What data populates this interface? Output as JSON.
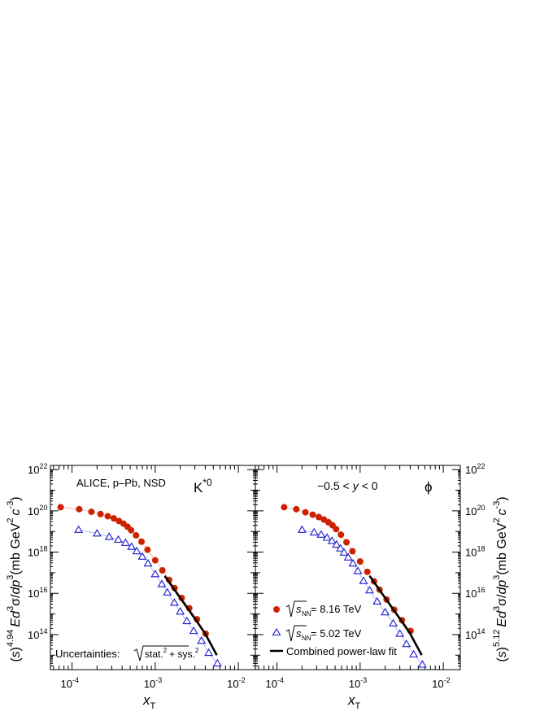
{
  "chart_data": [
    {
      "type": "scatter",
      "panel": "K*0",
      "particle_label": "K*0",
      "experiment_label": "ALICE, p–Pb, NSD",
      "uncertainty_label": "Uncertainties: √(stat.² + sys.²)",
      "xlabel": "x_T",
      "ylabel": "(√s)^4.94 Ed³σ/dp³ (mb GeV^2 c^-3)",
      "xscale": "log",
      "yscale": "log",
      "xlim": [
        5.5e-05,
        0.016
      ],
      "ylim": [
        2000000000000.0,
        1.6e+22
      ],
      "x_ticks": [
        "10^-4",
        "10^-3",
        "10^-2"
      ],
      "y_ticks": [
        "10^14",
        "10^16",
        "10^18",
        "10^20",
        "10^22"
      ],
      "series": [
        {
          "name": "√s_NN = 8.16 TeV",
          "color": "#cc2200",
          "marker": "filled-circle",
          "x": [
            7.3e-05,
            0.000122,
            0.000171,
            0.00022,
            0.000269,
            0.000318,
            0.000367,
            0.000416,
            0.000465,
            0.000514,
            0.000588,
            0.000685,
            0.000808,
            0.001,
            0.00122,
            0.00147,
            0.00171,
            0.00208,
            0.00257,
            0.00318,
            0.00404
          ],
          "y": [
            1.5e+20,
            1.2e+20,
            9e+19,
            7e+19,
            5.5e+19,
            4.3e+19,
            3.2e+19,
            2.4e+19,
            1.7e+19,
            1.15e+19,
            6.5e+18,
            3.2e+18,
            1.3e+18,
            4e+17,
            1.3e+17,
            4.5e+16,
            1.8e+16,
            6000000000000000.0,
            1900000000000000.0,
            550000000000000.0,
            110000000000000.0
          ]
        },
        {
          "name": "√s_NN = 5.02 TeV",
          "color": "#1a1acc",
          "marker": "open-triangle",
          "x": [
            0.00012,
            0.0002,
            0.00028,
            0.00036,
            0.00044,
            0.00052,
            0.0006,
            0.0007,
            0.00082,
            0.001,
            0.0012,
            0.0014,
            0.0017,
            0.002,
            0.0024,
            0.0029,
            0.0036,
            0.0044,
            0.0056
          ],
          "y": [
            1.2e+19,
            8e+18,
            5.5e+18,
            4e+18,
            2.8e+18,
            1.8e+18,
            1.1e+18,
            6e+17,
            2.8e+17,
            8.5e+16,
            2.8e+16,
            1.1e+16,
            3500000000000000.0,
            1300000000000000.0,
            450000000000000.0,
            150000000000000.0,
            50000000000000.0,
            13000000000000.0,
            4000000000000.0
          ]
        },
        {
          "name": "Combined power-law fit",
          "color": "#000000",
          "marker": "line",
          "x": [
            0.0013,
            0.002,
            0.003,
            0.004,
            0.0055
          ],
          "y": [
            7e+16,
            6000000000000000.0,
            600000000000000.0,
            110000000000000.0,
            10000000000000.0
          ]
        }
      ]
    },
    {
      "type": "scatter",
      "panel": "phi",
      "particle_label": "ϕ",
      "rapidity_label": "−0.5 < y < 0",
      "xlabel": "x_T",
      "ylabel": "(√s)^5.12 Ed³σ/dp³ (mb GeV^2 c^-3)",
      "xscale": "log",
      "yscale": "log",
      "xlim": [
        5.5e-05,
        0.016
      ],
      "ylim": [
        2000000000000.0,
        1.6e+22
      ],
      "x_ticks": [
        "10^-4",
        "10^-3",
        "10^-2"
      ],
      "y_ticks": [
        "10^14",
        "10^16",
        "10^18",
        "10^20",
        "10^22"
      ],
      "legend_placement": "bottom-left",
      "series": [
        {
          "name": "√s_NN = 8.16 TeV",
          "color": "#cc2200",
          "marker": "filled-circle",
          "x": [
            0.000122,
            0.000171,
            0.00022,
            0.000269,
            0.000318,
            0.000367,
            0.000416,
            0.000465,
            0.000514,
            0.000588,
            0.000685,
            0.000808,
            0.001,
            0.00122,
            0.00147,
            0.00171,
            0.00208,
            0.00257,
            0.00318,
            0.00404
          ],
          "y": [
            1.5e+20,
            1.2e+20,
            8.5e+19,
            6.5e+19,
            5e+19,
            3.8e+19,
            2.8e+19,
            2e+19,
            1.3e+19,
            7e+18,
            3e+18,
            1.1e+18,
            3.5e+17,
            1.1e+17,
            3.8e+16,
            1.5e+16,
            5000000000000000.0,
            1600000000000000.0,
            500000000000000.0,
            150000000000000.0
          ]
        },
        {
          "name": "√s_NN = 5.02 TeV",
          "color": "#1a1acc",
          "marker": "open-triangle",
          "x": [
            0.0002,
            0.00028,
            0.00034,
            0.0004,
            0.00046,
            0.00052,
            0.00058,
            0.00064,
            0.00072,
            0.00082,
            0.00094,
            0.0011,
            0.0013,
            0.0016,
            0.002,
            0.0025,
            0.003,
            0.0036,
            0.0044,
            0.0056
          ],
          "y": [
            1.2e+19,
            9e+18,
            7e+18,
            5e+18,
            3.5e+18,
            2.3e+18,
            1.5e+18,
            9.5e+17,
            5.5e+17,
            2.8e+17,
            1.2e+17,
            4e+16,
            1.4e+16,
            4000000000000000.0,
            1200000000000000.0,
            350000000000000.0,
            110000000000000.0,
            35000000000000.0,
            11000000000000.0,
            3500000000000.0
          ]
        },
        {
          "name": "Combined power-law fit",
          "color": "#000000",
          "marker": "line",
          "x": [
            0.0013,
            0.002,
            0.003,
            0.004,
            0.0055
          ],
          "y": [
            7e+16,
            6000000000000000.0,
            600000000000000.0,
            110000000000000.0,
            10000000000000.0
          ]
        }
      ]
    }
  ],
  "legend": {
    "entry_8_val": "= 8.16 TeV",
    "entry_5_val": "= 5.02 TeV",
    "entry_fit": "Combined power-law fit",
    "s_symbol": "s",
    "s_sub": "NN"
  },
  "text": {
    "experiment": "ALICE, p–Pb, NSD",
    "particle_left_base": "K",
    "particle_left_sup": "*0",
    "particle_right": "ϕ",
    "rapidity_pre": "−0.5 <",
    "rapidity_var": "y",
    "rapidity_post": "< 0",
    "uncert_pre": "Uncertainties:",
    "uncert_stat": "stat.",
    "uncert_plus": "+ sys.",
    "uncert_sq": "2",
    "xlabel_var": "x",
    "xlabel_sub": "T",
    "ylabel_left_exp": "4.94",
    "ylabel_right_exp": "5.12",
    "ylabel_s": "s",
    "ylabel_E": "Ed",
    "ylabel_3a": "3",
    "ylabel_sigma": "σ/",
    "ylabel_dp": "dp",
    "ylabel_3b": "3",
    "ylabel_units_a": "(mb GeV",
    "ylabel_2": "2",
    "ylabel_c": "c",
    "ylabel_m3": "-3",
    "ylabel_close": ")",
    "tick_base": "10",
    "xtick_exps": [
      "-4",
      "-3",
      "-2"
    ],
    "ytick_exps": [
      "14",
      "16",
      "18",
      "20",
      "22"
    ]
  }
}
